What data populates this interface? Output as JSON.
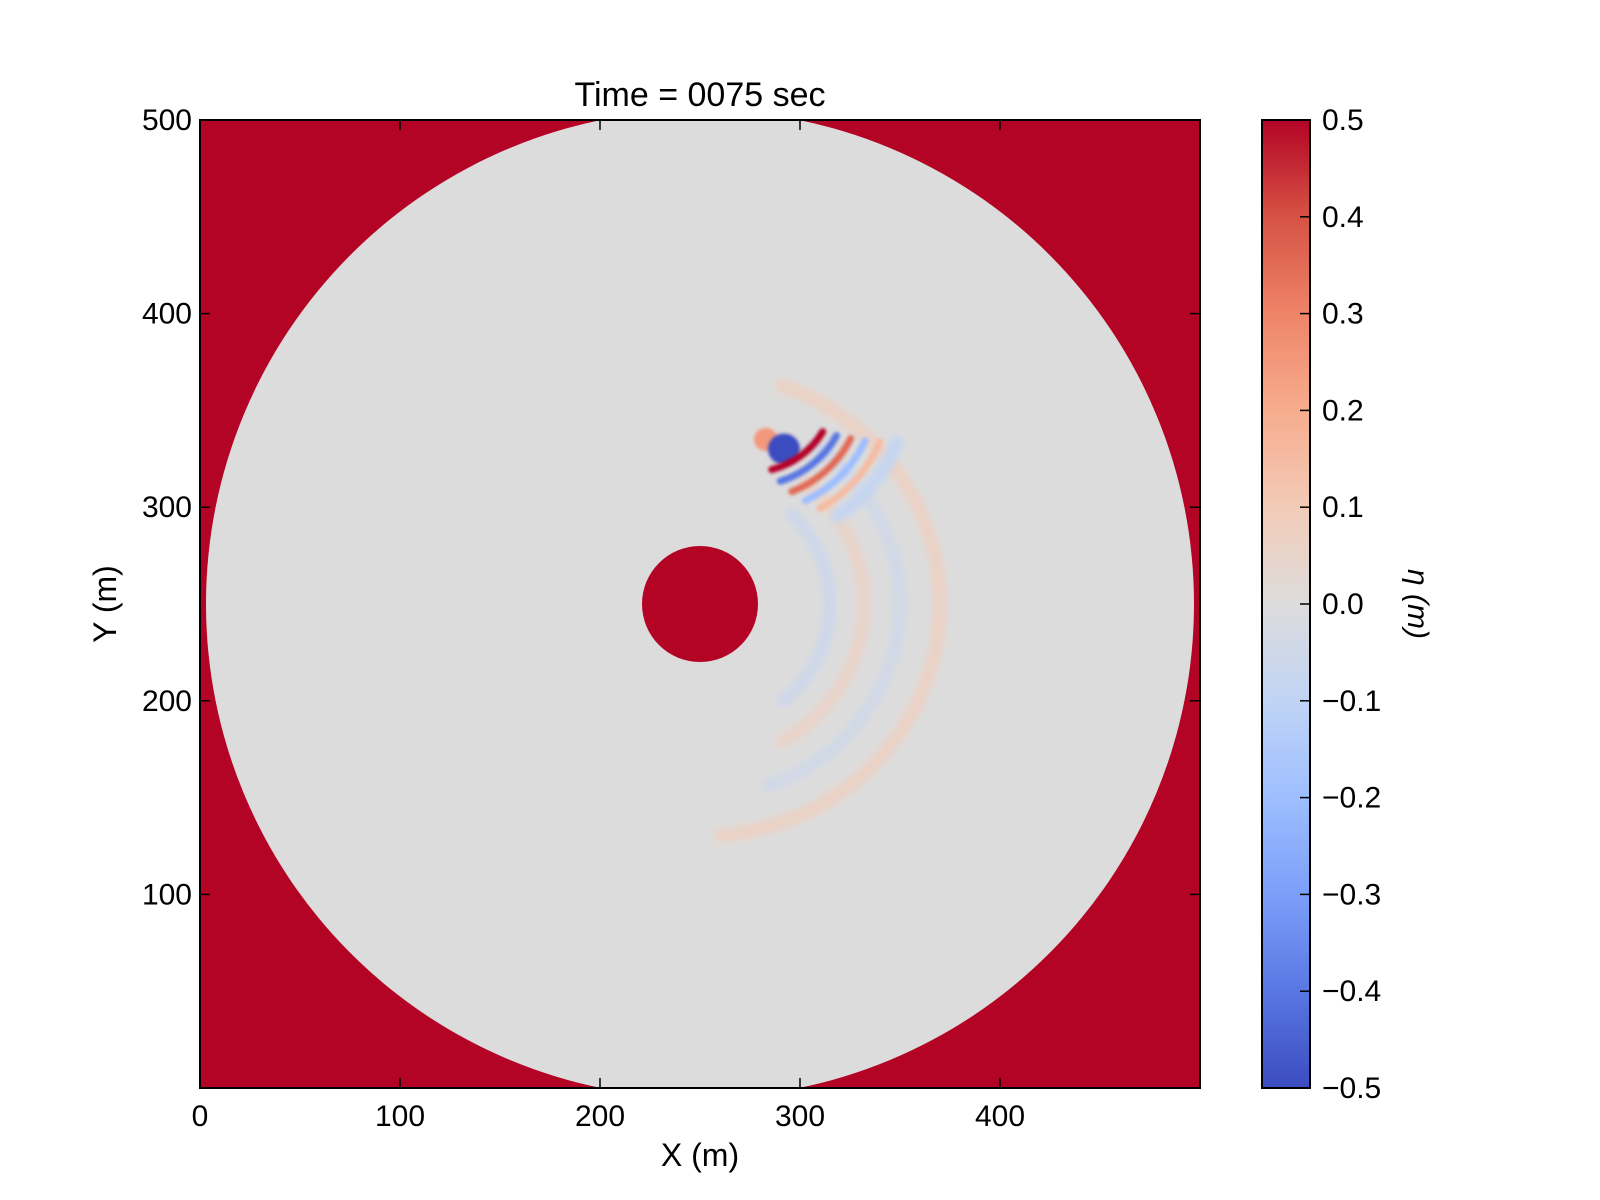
{
  "chart_data": {
    "type": "heatmap",
    "title": "Time = 0075 sec",
    "xlabel": "X (m)",
    "ylabel": "Y (m)",
    "xlim": [
      0,
      500
    ],
    "ylim": [
      0,
      500
    ],
    "x_ticks": [
      0,
      100,
      200,
      300,
      400
    ],
    "y_ticks": [
      100,
      200,
      300,
      400,
      500
    ],
    "x_tick_labels": [
      "0",
      "100",
      "200",
      "300",
      "400"
    ],
    "y_tick_labels": [
      "100",
      "200",
      "300",
      "400",
      "500"
    ],
    "grid": false,
    "colormap": "coolwarm",
    "colorbar": {
      "label": "η (m)",
      "range": [
        -0.5,
        0.5
      ],
      "ticks": [
        0.5,
        0.4,
        0.3,
        0.2,
        0.1,
        0.0,
        -0.1,
        -0.2,
        -0.3,
        -0.4,
        -0.5
      ],
      "tick_labels": [
        "0.5",
        "0.4",
        "0.3",
        "0.2",
        "0.1",
        "0.0",
        "−0.1",
        "−0.2",
        "−0.3",
        "−0.4",
        "−0.5"
      ]
    },
    "field": {
      "background_value": 0.5,
      "domain": {
        "shape": "circle",
        "center": [
          250,
          250
        ],
        "radius": 247,
        "value": 0.0
      },
      "island": {
        "shape": "circle",
        "center": [
          250,
          250
        ],
        "radius": 29,
        "value": 0.5
      },
      "features": [
        {
          "name": "wave-front",
          "center": [
            250,
            250
          ],
          "radius": 120,
          "start_deg": -85,
          "end_deg": 70,
          "amplitude": 0.06
        },
        {
          "name": "wave-ring-1",
          "center": [
            250,
            250
          ],
          "radius": 100,
          "start_deg": -70,
          "end_deg": 55,
          "amplitude": -0.04
        },
        {
          "name": "wave-ring-2",
          "center": [
            250,
            250
          ],
          "radius": 82,
          "start_deg": -60,
          "end_deg": 50,
          "amplitude": 0.05
        },
        {
          "name": "wave-ring-3",
          "center": [
            250,
            250
          ],
          "radius": 65,
          "start_deg": -50,
          "end_deg": 45,
          "amplitude": -0.05
        },
        {
          "name": "source-crest",
          "center": [
            283,
            335
          ],
          "radius": 6,
          "amplitude": 0.25
        },
        {
          "name": "source-trough",
          "center": [
            292,
            330
          ],
          "radius": 8,
          "amplitude": -0.5
        },
        {
          "name": "source-wave-1",
          "center": [
            275,
            360
          ],
          "radius": 42,
          "start_deg": -75,
          "end_deg": -30,
          "amplitude": 0.5
        },
        {
          "name": "source-wave-2",
          "center": [
            275,
            360
          ],
          "radius": 49,
          "start_deg": -72,
          "end_deg": -28,
          "amplitude": -0.4
        },
        {
          "name": "source-wave-3",
          "center": [
            275,
            360
          ],
          "radius": 56,
          "start_deg": -68,
          "end_deg": -26,
          "amplitude": 0.35
        },
        {
          "name": "source-wave-4",
          "center": [
            275,
            360
          ],
          "radius": 63,
          "start_deg": -64,
          "end_deg": -24,
          "amplitude": -0.2
        },
        {
          "name": "source-wave-5",
          "center": [
            275,
            360
          ],
          "radius": 70,
          "start_deg": -60,
          "end_deg": -22,
          "amplitude": 0.15
        },
        {
          "name": "source-wave-6",
          "center": [
            275,
            360
          ],
          "radius": 78,
          "start_deg": -56,
          "end_deg": -20,
          "amplitude": -0.08
        }
      ]
    }
  }
}
